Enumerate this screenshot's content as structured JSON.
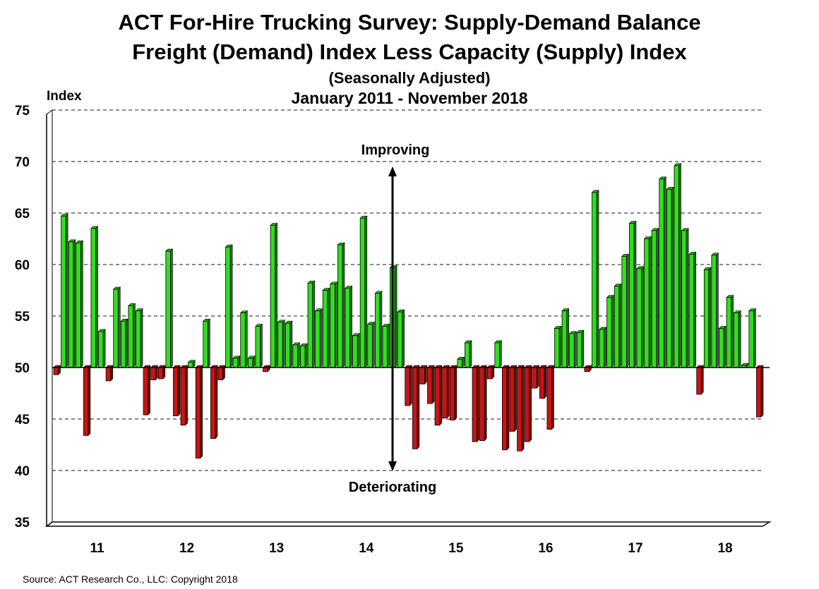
{
  "chart_data": {
    "type": "bar",
    "title": "ACT For-Hire Trucking Survey: Supply-Demand Balance",
    "subtitle": "Freight (Demand) Index Less Capacity (Supply) Index",
    "note": "(Seasonally Adjusted)",
    "period": "January 2011 - November 2018",
    "ylabel": "Index",
    "ylim": [
      35,
      75
    ],
    "baseline": 50,
    "yticks": [
      35,
      40,
      45,
      50,
      55,
      60,
      65,
      70,
      75
    ],
    "grid": true,
    "x_tick_labels": [
      "11",
      "12",
      "13",
      "14",
      "15",
      "16",
      "17",
      "18"
    ],
    "annotations": {
      "up": "Improving",
      "down": "Deteriorating"
    },
    "colors": {
      "above": "#33dd1e",
      "below": "#c81414",
      "grid": "#444444",
      "arrow": "#000000"
    },
    "months": [
      "2011-01",
      "2011-02",
      "2011-03",
      "2011-04",
      "2011-05",
      "2011-06",
      "2011-07",
      "2011-08",
      "2011-09",
      "2011-10",
      "2011-11",
      "2011-12",
      "2012-01",
      "2012-02",
      "2012-03",
      "2012-04",
      "2012-05",
      "2012-06",
      "2012-07",
      "2012-08",
      "2012-09",
      "2012-10",
      "2012-11",
      "2012-12",
      "2013-01",
      "2013-02",
      "2013-03",
      "2013-04",
      "2013-05",
      "2013-06",
      "2013-07",
      "2013-08",
      "2013-09",
      "2013-10",
      "2013-11",
      "2013-12",
      "2014-01",
      "2014-02",
      "2014-03",
      "2014-04",
      "2014-05",
      "2014-06",
      "2014-07",
      "2014-08",
      "2014-09",
      "2014-10",
      "2014-11",
      "2014-12",
      "2015-01",
      "2015-02",
      "2015-03",
      "2015-04",
      "2015-05",
      "2015-06",
      "2015-07",
      "2015-08",
      "2015-09",
      "2015-10",
      "2015-11",
      "2015-12",
      "2016-01",
      "2016-02",
      "2016-03",
      "2016-04",
      "2016-05",
      "2016-06",
      "2016-07",
      "2016-08",
      "2016-09",
      "2016-10",
      "2016-11",
      "2016-12",
      "2017-01",
      "2017-02",
      "2017-03",
      "2017-04",
      "2017-05",
      "2017-06",
      "2017-07",
      "2017-08",
      "2017-09",
      "2017-10",
      "2017-11",
      "2017-12",
      "2018-01",
      "2018-02",
      "2018-03",
      "2018-04",
      "2018-05",
      "2018-06",
      "2018-07",
      "2018-08",
      "2018-09",
      "2018-10",
      "2018-11"
    ],
    "values": [
      49.3,
      64.7,
      62.2,
      62.1,
      43.4,
      63.5,
      53.5,
      48.7,
      57.6,
      54.5,
      56.0,
      55.5,
      45.4,
      48.8,
      48.9,
      61.3,
      45.3,
      44.4,
      50.5,
      41.2,
      54.5,
      43.1,
      48.8,
      61.7,
      50.9,
      55.3,
      50.9,
      54.0,
      49.6,
      63.8,
      54.4,
      54.3,
      52.2,
      52.1,
      58.2,
      55.5,
      57.5,
      58.1,
      61.9,
      57.7,
      53.1,
      64.5,
      54.2,
      57.2,
      54.0,
      59.7,
      55.4,
      46.3,
      42.1,
      48.4,
      46.5,
      44.4,
      45.1,
      44.9,
      50.8,
      52.4,
      42.8,
      42.9,
      48.9,
      52.4,
      42.0,
      43.8,
      41.9,
      42.8,
      48.0,
      47.0,
      44.0,
      53.8,
      55.5,
      53.3,
      53.4,
      49.6,
      67.0,
      53.7,
      56.8,
      57.9,
      60.8,
      64.0,
      59.6,
      62.5,
      63.3,
      68.3,
      67.3,
      69.6,
      63.3,
      61.0,
      47.4,
      59.5,
      60.9,
      53.8,
      56.8,
      55.3,
      50.2,
      55.5,
      45.2
    ]
  },
  "source": "Source: ACT Research Co., LLC: Copyright 2018"
}
